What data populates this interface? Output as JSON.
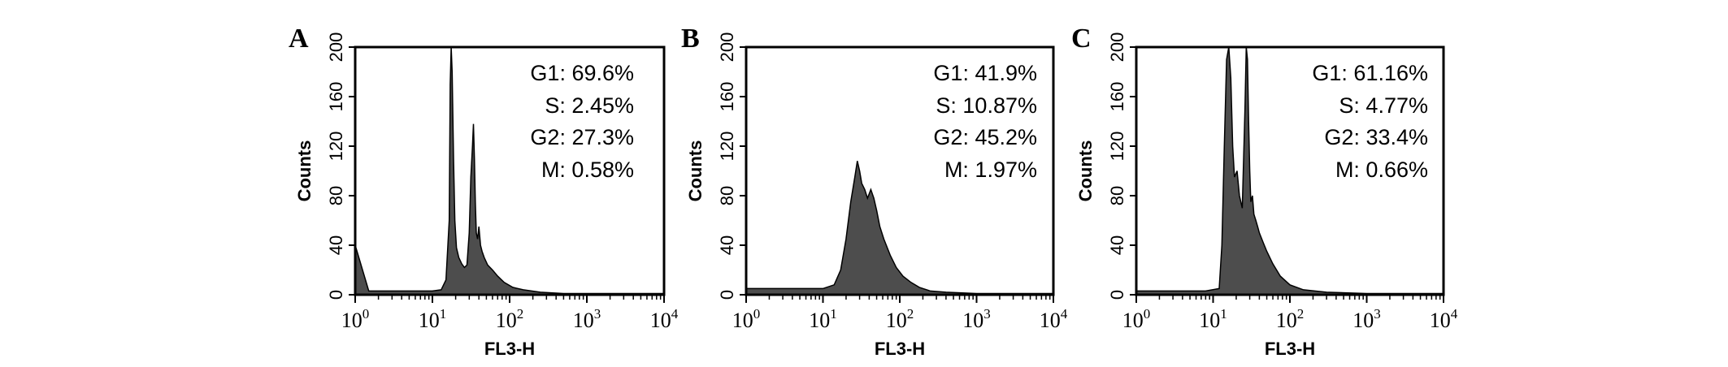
{
  "figure": {
    "background": "#ffffff",
    "fill_color": "#4d4d4d",
    "line_color": "#000000"
  },
  "chart_data": [
    {
      "type": "area",
      "panel_label": "A",
      "xlabel": "FL3-H",
      "ylabel": "Counts",
      "x_scale": "log",
      "xlim": [
        1,
        10000
      ],
      "ylim": [
        0,
        200
      ],
      "x_ticks": [
        {
          "base": "10",
          "exp": "0"
        },
        {
          "base": "10",
          "exp": "1"
        },
        {
          "base": "10",
          "exp": "2"
        },
        {
          "base": "10",
          "exp": "3"
        },
        {
          "base": "10",
          "exp": "4"
        }
      ],
      "y_ticks": [
        "0",
        "40",
        "80",
        "120",
        "160",
        "200"
      ],
      "annotations": [
        "G1: 69.6%",
        "S: 2.45%",
        "G2: 27.3%",
        "M: 0.58%"
      ],
      "x": [
        1,
        1.5,
        3,
        6,
        10,
        13,
        15,
        16.5,
        17,
        17.5,
        18,
        18.8,
        19.5,
        20.5,
        22,
        24,
        26,
        28,
        30,
        31.5,
        33,
        34,
        35,
        36,
        37,
        38.5,
        40,
        42,
        44,
        47,
        52,
        60,
        70,
        85,
        110,
        150,
        250,
        500,
        1000,
        10000
      ],
      "y": [
        40,
        3,
        3,
        3,
        3,
        4,
        12,
        60,
        170,
        200,
        180,
        110,
        60,
        38,
        30,
        25,
        22,
        24,
        50,
        95,
        120,
        138,
        110,
        75,
        50,
        45,
        55,
        40,
        35,
        30,
        24,
        20,
        15,
        10,
        6,
        4,
        2,
        1,
        1,
        1
      ]
    },
    {
      "type": "area",
      "panel_label": "B",
      "xlabel": "FL3-H",
      "ylabel": "Counts",
      "x_scale": "log",
      "xlim": [
        1,
        10000
      ],
      "ylim": [
        0,
        200
      ],
      "x_ticks": [
        {
          "base": "10",
          "exp": "0"
        },
        {
          "base": "10",
          "exp": "1"
        },
        {
          "base": "10",
          "exp": "2"
        },
        {
          "base": "10",
          "exp": "3"
        },
        {
          "base": "10",
          "exp": "4"
        }
      ],
      "y_ticks": [
        "0",
        "40",
        "80",
        "120",
        "160",
        "200"
      ],
      "annotations": [
        "G1: 41.9%",
        "S: 10.87%",
        "G2: 45.2%",
        "M: 1.97%"
      ],
      "x": [
        1,
        5,
        10,
        14,
        17,
        20,
        23,
        26,
        28,
        30,
        32,
        35,
        38,
        42,
        46,
        50,
        55,
        62,
        75,
        90,
        110,
        140,
        180,
        250,
        400,
        1000,
        10000
      ],
      "y": [
        5,
        5,
        5,
        8,
        20,
        45,
        75,
        95,
        108,
        100,
        90,
        85,
        78,
        85,
        78,
        68,
        55,
        45,
        32,
        22,
        15,
        10,
        6,
        3,
        2,
        1,
        1
      ]
    },
    {
      "type": "area",
      "panel_label": "C",
      "xlabel": "FL3-H",
      "ylabel": "Counts",
      "x_scale": "log",
      "xlim": [
        1,
        10000
      ],
      "ylim": [
        0,
        200
      ],
      "x_ticks": [
        {
          "base": "10",
          "exp": "0"
        },
        {
          "base": "10",
          "exp": "1"
        },
        {
          "base": "10",
          "exp": "2"
        },
        {
          "base": "10",
          "exp": "3"
        },
        {
          "base": "10",
          "exp": "4"
        }
      ],
      "y_ticks": [
        "0",
        "40",
        "80",
        "120",
        "160",
        "200"
      ],
      "annotations": [
        "G1: 61.16%",
        "S: 4.77%",
        "G2: 33.4%",
        "M: 0.66%"
      ],
      "x": [
        1,
        3,
        8,
        12,
        13,
        14,
        15,
        16,
        17,
        18,
        19,
        20.5,
        22,
        24,
        26,
        27,
        28,
        29,
        30,
        31,
        32.5,
        34,
        36,
        38,
        40,
        45,
        50,
        60,
        75,
        100,
        150,
        300,
        1000,
        10000
      ],
      "y": [
        3,
        3,
        3,
        5,
        40,
        120,
        190,
        200,
        175,
        120,
        95,
        100,
        80,
        70,
        150,
        200,
        190,
        140,
        100,
        75,
        80,
        65,
        60,
        55,
        50,
        42,
        35,
        25,
        15,
        8,
        4,
        2,
        1,
        1
      ]
    }
  ]
}
